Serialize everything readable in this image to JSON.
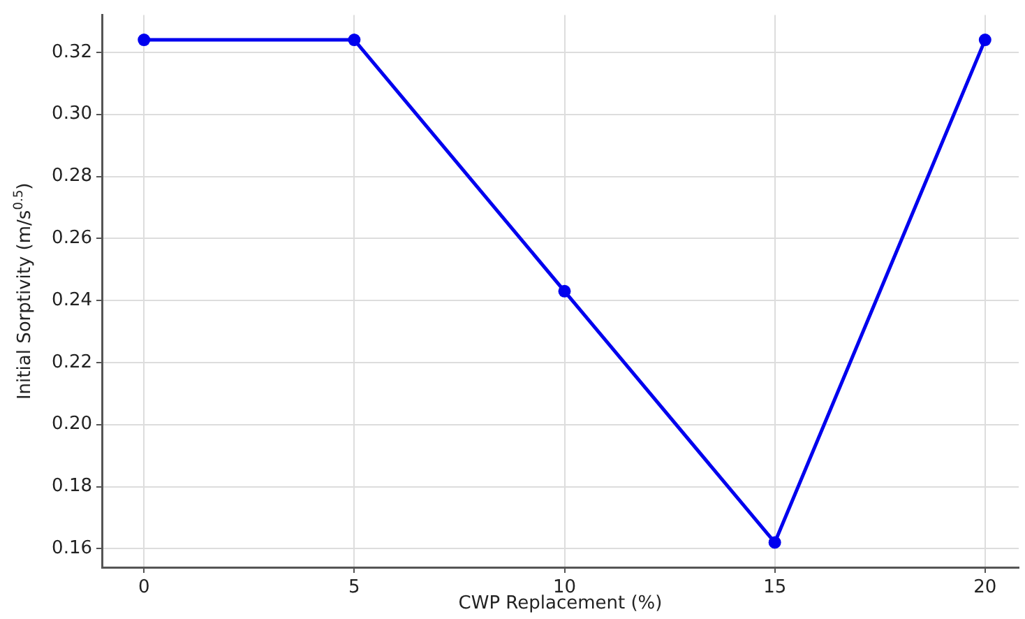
{
  "chart_data": {
    "type": "line",
    "xlabel": "CWP Replacement (%)",
    "ylabel": "Initial Sorptivity (m/s$^{0.5}$)",
    "x": [
      0,
      5,
      10,
      15,
      20
    ],
    "series": [
      {
        "color": "#0000ee",
        "values": [
          0.324,
          0.324,
          0.243,
          0.162,
          0.324
        ]
      }
    ],
    "xlim": [
      -1,
      20.8
    ],
    "xticks": [
      0,
      5,
      10,
      15,
      20
    ],
    "ylim": [
      0.154,
      0.332
    ],
    "yticks": [
      {
        "value": 0.16,
        "label": "0.16"
      },
      {
        "value": 0.18,
        "label": "0.18"
      },
      {
        "value": 0.2,
        "label": "0.20"
      },
      {
        "value": 0.22,
        "label": "0.22"
      },
      {
        "value": 0.24,
        "label": "0.24"
      },
      {
        "value": 0.26,
        "label": "0.26"
      },
      {
        "value": 0.28,
        "label": "0.28"
      },
      {
        "value": 0.3,
        "label": "0.30"
      },
      {
        "value": 0.32,
        "label": "0.32"
      }
    ],
    "grid": true,
    "marker": "circle",
    "line_style": "solid",
    "legend": false
  }
}
